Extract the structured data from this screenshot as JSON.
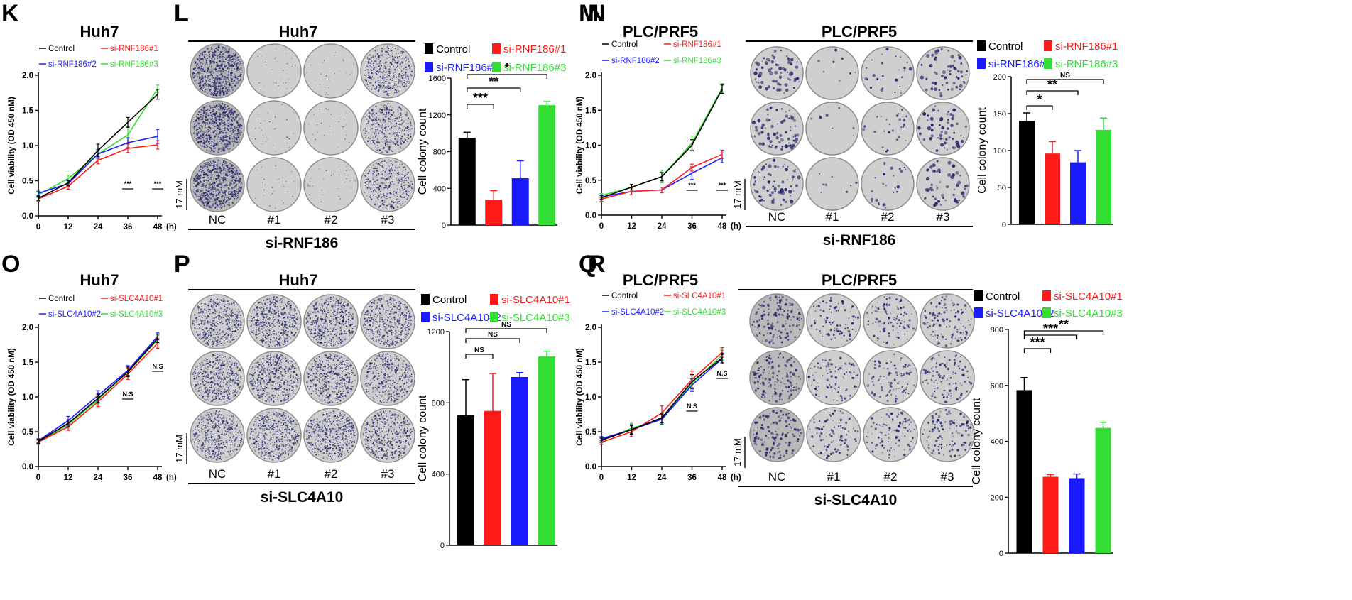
{
  "colors": {
    "control": "#000000",
    "kd1": "#ff1a1a",
    "kd2": "#1a1aff",
    "kd3": "#33dd33",
    "axis": "#000000",
    "dish_outer": "#8c8c8c",
    "dish_fill": "#cfcfcf",
    "dish_dark": "#b9b9b9",
    "colony_blue": "#2b2b6e"
  },
  "common": {
    "x_ticks": [
      "0",
      "12",
      "24",
      "36",
      "48"
    ],
    "x_unit": "(h)",
    "line_ylabel": "Cell viability (OD 450 nM)",
    "bar_ylabel": "Cell colony count",
    "scale_label": "17 mM",
    "dish_labels": [
      "NC",
      "#1",
      "#2",
      "#3"
    ]
  },
  "panels": [
    {
      "letter": "K",
      "kind": "line",
      "title": "Huh7"
    },
    {
      "letter": "L",
      "kind": "colony",
      "title": "Huh7",
      "footer": "si-RNF186"
    },
    {
      "letter": "M",
      "kind": "line",
      "title": "PLC/PRF5"
    },
    {
      "letter": "N",
      "kind": "colony",
      "title": "PLC/PRF5",
      "footer": "si-RNF186"
    },
    {
      "letter": "O",
      "kind": "line",
      "title": "Huh7"
    },
    {
      "letter": "P",
      "kind": "colony",
      "title": "Huh7",
      "footer": "si-SLC4A10"
    },
    {
      "letter": "Q",
      "kind": "line",
      "title": "PLC/PRF5"
    },
    {
      "letter": "R",
      "kind": "colony",
      "title": "PLC/PRF5",
      "footer": "si-SLC4A10"
    }
  ],
  "chart_data": [
    {
      "id": "K",
      "type": "line",
      "title": "Huh7",
      "xlabel": "(h)",
      "ylabel": "Cell viability (OD 450 nM)",
      "x": [
        0,
        12,
        24,
        36,
        48
      ],
      "ylim": [
        0,
        2.0
      ],
      "yticks": [
        "0.0",
        "0.5",
        "1.0",
        "1.5",
        "2.0"
      ],
      "series": [
        {
          "name": "Control",
          "values": [
            0.25,
            0.47,
            0.93,
            1.33,
            1.73
          ],
          "errors": [
            0.03,
            0.04,
            0.09,
            0.07,
            0.07
          ]
        },
        {
          "name": "si-RNF186#1",
          "values": [
            0.24,
            0.42,
            0.79,
            0.96,
            1.01
          ],
          "errors": [
            0.03,
            0.04,
            0.05,
            0.06,
            0.06
          ]
        },
        {
          "name": "si-RNF186#2",
          "values": [
            0.32,
            0.46,
            0.88,
            1.04,
            1.13
          ],
          "errors": [
            0.03,
            0.04,
            0.06,
            0.07,
            0.1
          ]
        },
        {
          "name": "si-RNF186#3",
          "values": [
            0.3,
            0.53,
            0.88,
            1.15,
            1.81
          ],
          "errors": [
            0.04,
            0.05,
            0.07,
            0.12,
            0.05
          ]
        }
      ],
      "annotations": [
        {
          "x": 36,
          "text": "***"
        },
        {
          "x": 48,
          "text": "***"
        }
      ]
    },
    {
      "id": "L",
      "type": "bar",
      "title": "Huh7",
      "ylabel": "Cell colony count",
      "categories": [
        "Control",
        "si-RNF186#1",
        "si-RNF186#2",
        "si-RNF186#3"
      ],
      "values": [
        950,
        275,
        510,
        1305
      ],
      "errors": [
        60,
        100,
        190,
        40
      ],
      "ylim": [
        0,
        1600
      ],
      "yticks": [
        "0",
        "400",
        "800",
        "1200",
        "1600"
      ],
      "significance": [
        {
          "from": 0,
          "to": 1,
          "text": "***"
        },
        {
          "from": 0,
          "to": 2,
          "text": "**"
        },
        {
          "from": 0,
          "to": 3,
          "text": "*"
        }
      ]
    },
    {
      "id": "M",
      "type": "line",
      "title": "PLC/PRF5",
      "xlabel": "(h)",
      "ylabel": "Cell viability (OD 450 nM)",
      "x": [
        0,
        12,
        24,
        36,
        48
      ],
      "ylim": [
        0,
        2.0
      ],
      "yticks": [
        "0.0",
        "0.5",
        "1.0",
        "1.5",
        "2.0"
      ],
      "series": [
        {
          "name": "Control",
          "values": [
            0.25,
            0.4,
            0.55,
            1.0,
            1.8
          ],
          "errors": [
            0.03,
            0.04,
            0.06,
            0.08,
            0.06
          ]
        },
        {
          "name": "si-RNF186#1",
          "values": [
            0.23,
            0.34,
            0.36,
            0.68,
            0.87
          ],
          "errors": [
            0.03,
            0.05,
            0.04,
            0.05,
            0.06
          ]
        },
        {
          "name": "si-RNF186#2",
          "values": [
            0.26,
            0.34,
            0.36,
            0.6,
            0.82
          ],
          "errors": [
            0.03,
            0.05,
            0.04,
            0.09,
            0.07
          ]
        },
        {
          "name": "si-RNF186#3",
          "values": [
            0.28,
            0.4,
            0.55,
            1.03,
            1.82
          ],
          "errors": [
            0.03,
            0.04,
            0.09,
            0.1,
            0.06
          ]
        }
      ],
      "annotations": [
        {
          "x": 36,
          "text": "***"
        },
        {
          "x": 48,
          "text": "***"
        }
      ]
    },
    {
      "id": "N",
      "type": "bar",
      "title": "PLC/PRF5",
      "ylabel": "Cell colony count",
      "categories": [
        "Control",
        "si-RNF186#1",
        "si-RNF186#2",
        "si-RNF186#3"
      ],
      "values": [
        140,
        96,
        84,
        128
      ],
      "errors": [
        11,
        16,
        16,
        16
      ],
      "ylim": [
        0,
        200
      ],
      "yticks": [
        "0",
        "50",
        "100",
        "150",
        "200"
      ],
      "significance": [
        {
          "from": 0,
          "to": 1,
          "text": "*"
        },
        {
          "from": 0,
          "to": 2,
          "text": "**"
        },
        {
          "from": 0,
          "to": 3,
          "text": "NS"
        }
      ]
    },
    {
      "id": "O",
      "type": "line",
      "title": "Huh7",
      "xlabel": "(h)",
      "ylabel": "Cell viability (OD 450 nM)",
      "x": [
        0,
        12,
        24,
        36,
        48
      ],
      "ylim": [
        0,
        2.0
      ],
      "yticks": [
        "0.0",
        "0.5",
        "1.0",
        "1.5",
        "2.0"
      ],
      "series": [
        {
          "name": "Control",
          "values": [
            0.36,
            0.62,
            0.98,
            1.36,
            1.84
          ],
          "errors": [
            0.03,
            0.05,
            0.06,
            0.07,
            0.06
          ]
        },
        {
          "name": "si-SLC4A10#1",
          "values": [
            0.35,
            0.57,
            0.93,
            1.33,
            1.77
          ],
          "errors": [
            0.03,
            0.05,
            0.07,
            0.08,
            0.07
          ]
        },
        {
          "name": "si-SLC4A10#2",
          "values": [
            0.37,
            0.66,
            1.02,
            1.38,
            1.87
          ],
          "errors": [
            0.03,
            0.06,
            0.07,
            0.07,
            0.05
          ]
        },
        {
          "name": "si-SLC4A10#3",
          "values": [
            0.35,
            0.6,
            0.96,
            1.36,
            1.82
          ],
          "errors": [
            0.03,
            0.05,
            0.06,
            0.09,
            0.06
          ]
        }
      ],
      "annotations": [
        {
          "x": 36,
          "text": "N.S"
        },
        {
          "x": 48,
          "text": "N.S"
        }
      ]
    },
    {
      "id": "P",
      "type": "bar",
      "title": "Huh7",
      "ylabel": "Cell colony count",
      "categories": [
        "Control",
        "si-SLC4A10#1",
        "si-SLC4A10#2",
        "si-SLC4A10#3"
      ],
      "values": [
        730,
        755,
        945,
        1060
      ],
      "errors": [
        200,
        210,
        25,
        30
      ],
      "ylim": [
        0,
        1200
      ],
      "yticks": [
        "0",
        "400",
        "800",
        "1200"
      ],
      "significance": [
        {
          "from": 0,
          "to": 1,
          "text": "NS"
        },
        {
          "from": 0,
          "to": 2,
          "text": "NS"
        },
        {
          "from": 0,
          "to": 3,
          "text": "NS"
        }
      ]
    },
    {
      "id": "Q",
      "type": "line",
      "title": "PLC/PRF5",
      "xlabel": "(h)",
      "ylabel": "Cell viability (OD 450 nM)",
      "x": [
        0,
        12,
        24,
        36,
        48
      ],
      "ylim": [
        0,
        2.0
      ],
      "yticks": [
        "0.0",
        "0.5",
        "1.0",
        "1.5",
        "2.0"
      ],
      "series": [
        {
          "name": "Control",
          "values": [
            0.38,
            0.53,
            0.7,
            1.22,
            1.56
          ],
          "errors": [
            0.03,
            0.06,
            0.07,
            0.1,
            0.07
          ]
        },
        {
          "name": "si-SLC4A10#1",
          "values": [
            0.35,
            0.5,
            0.77,
            1.25,
            1.64
          ],
          "errors": [
            0.03,
            0.07,
            0.1,
            0.12,
            0.07
          ]
        },
        {
          "name": "si-SLC4A10#2",
          "values": [
            0.4,
            0.53,
            0.68,
            1.17,
            1.55
          ],
          "errors": [
            0.03,
            0.07,
            0.07,
            0.09,
            0.06
          ]
        },
        {
          "name": "si-SLC4A10#3",
          "values": [
            0.37,
            0.55,
            0.68,
            1.2,
            1.6
          ],
          "errors": [
            0.03,
            0.07,
            0.08,
            0.1,
            0.07
          ]
        }
      ],
      "annotations": [
        {
          "x": 36,
          "text": "N.S"
        },
        {
          "x": 48,
          "text": "N.S"
        }
      ]
    },
    {
      "id": "R",
      "type": "bar",
      "title": "PLC/PRF5",
      "ylabel": "Cell colony count",
      "categories": [
        "Control",
        "si-SLC4A10#1",
        "si-SLC4A10#2",
        "si-SLC4A10#3"
      ],
      "values": [
        583,
        273,
        268,
        448
      ],
      "errors": [
        45,
        8,
        15,
        20
      ],
      "ylim": [
        0,
        800
      ],
      "yticks": [
        "0",
        "200",
        "400",
        "600",
        "800"
      ],
      "significance": [
        {
          "from": 0,
          "to": 1,
          "text": "***"
        },
        {
          "from": 0,
          "to": 2,
          "text": "***"
        },
        {
          "from": 0,
          "to": 3,
          "text": "**"
        }
      ]
    }
  ]
}
